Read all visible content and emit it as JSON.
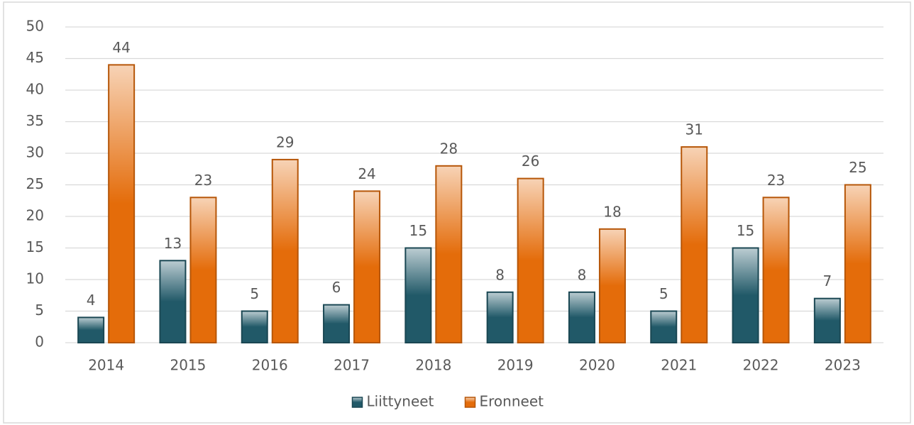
{
  "chart_data": {
    "type": "bar",
    "categories": [
      "2014",
      "2015",
      "2016",
      "2017",
      "2018",
      "2019",
      "2020",
      "2021",
      "2022",
      "2023"
    ],
    "series": [
      {
        "name": "Liittyneet",
        "color": "#215968",
        "values": [
          4,
          13,
          5,
          6,
          15,
          8,
          8,
          5,
          15,
          7
        ]
      },
      {
        "name": "Eronneet",
        "color": "#e46c0a",
        "values": [
          44,
          23,
          29,
          24,
          28,
          26,
          18,
          31,
          23,
          25
        ]
      }
    ],
    "ylim": [
      0,
      50
    ],
    "yticks": [
      0,
      5,
      10,
      15,
      20,
      25,
      30,
      35,
      40,
      45,
      50
    ],
    "grid": true,
    "legend": "bottom"
  }
}
